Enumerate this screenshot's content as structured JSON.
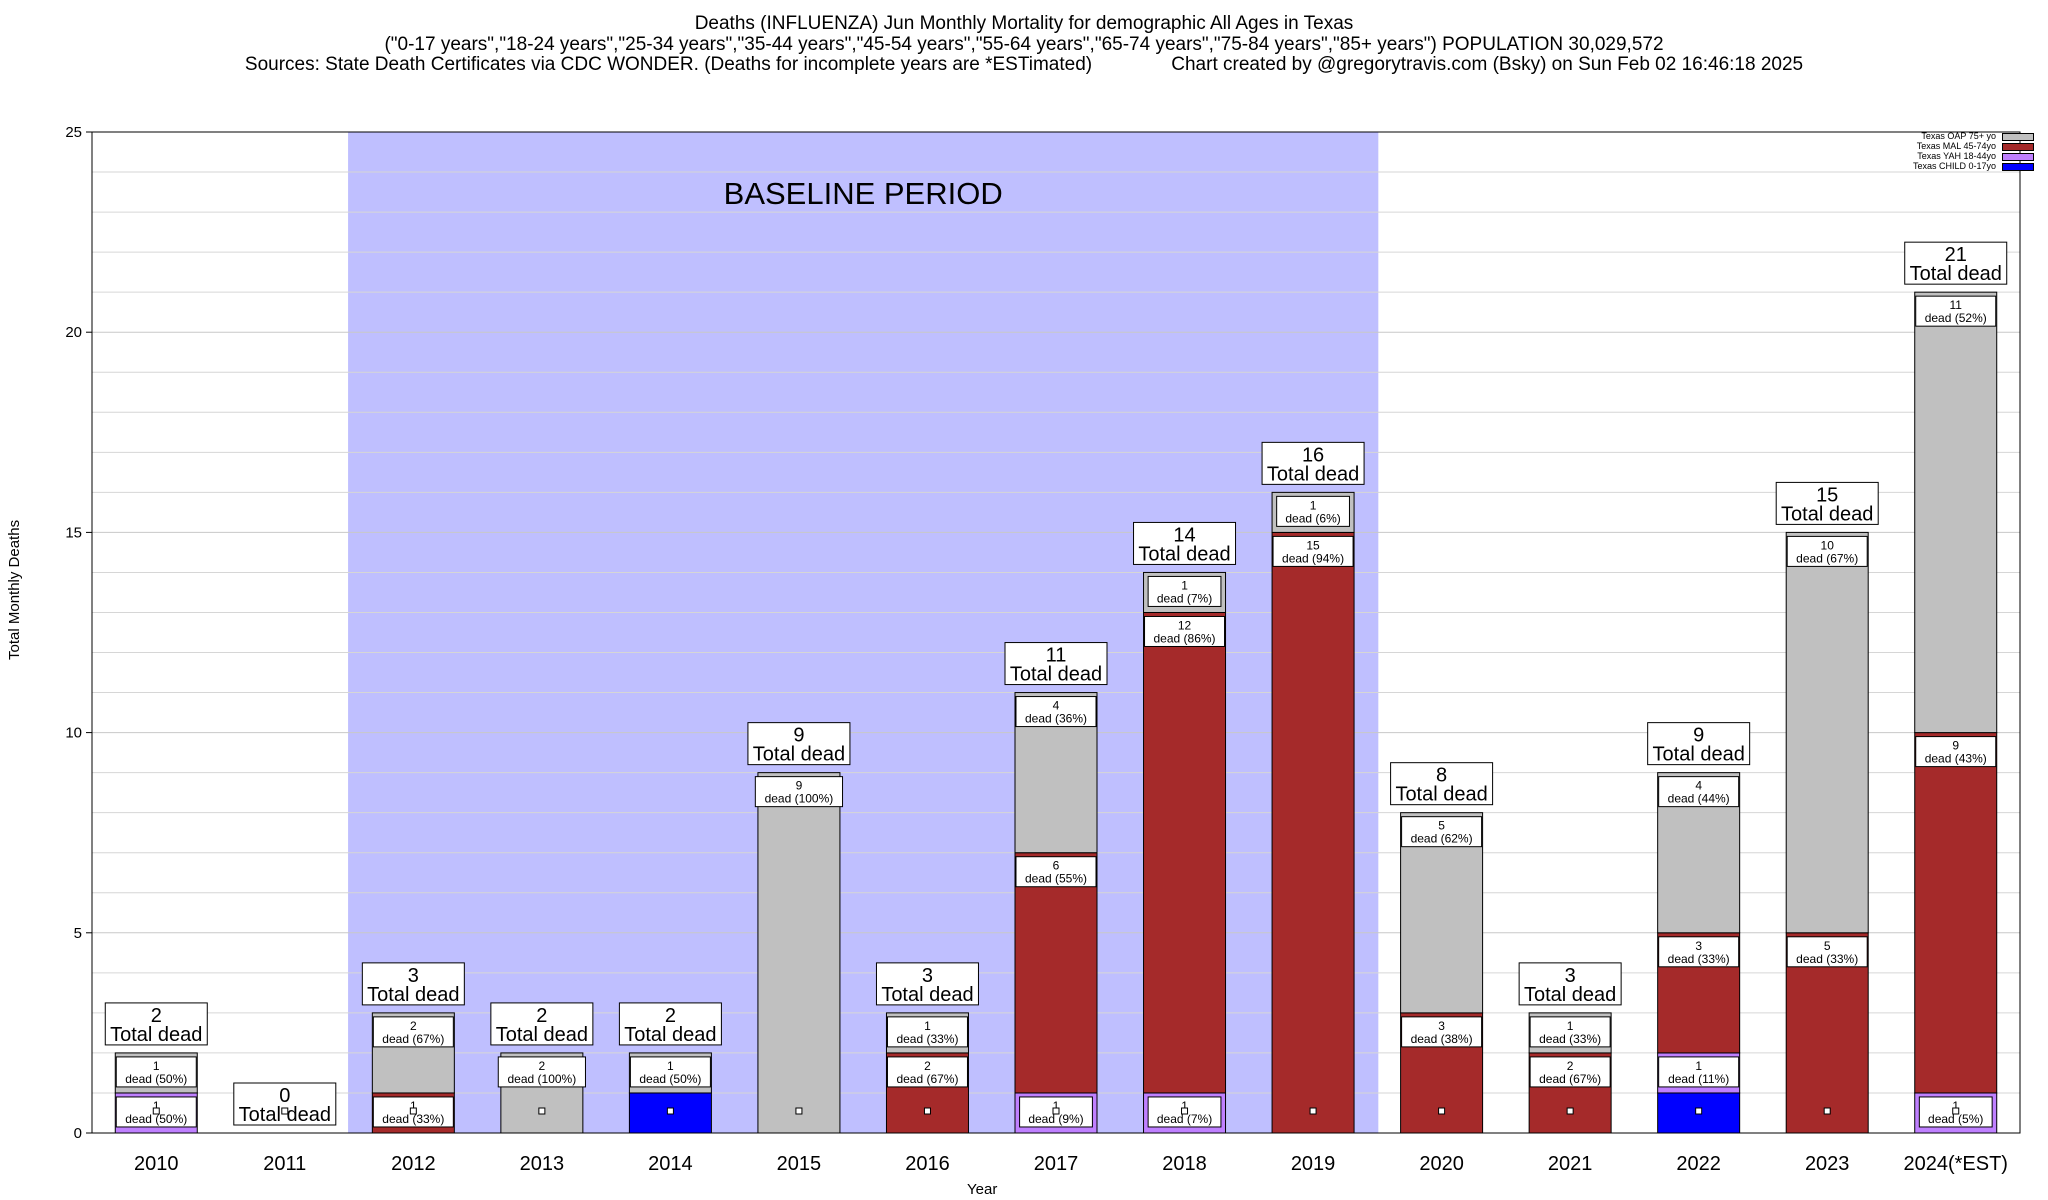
{
  "header": {
    "title_line1": "Deaths (INFLUENZA) Jun Monthly Mortality for demographic All Ages in Texas",
    "title_line2": "(\"0-17 years\",\"18-24 years\",\"25-34 years\",\"35-44 years\",\"45-54 years\",\"55-64 years\",\"65-74 years\",\"75-84 years\",\"85+ years\") POPULATION 30,029,572",
    "title_line3": "Sources: State Death Certificates via CDC WONDER. (Deaths for incomplete years are *ESTimated)               Chart created by @gregorytravis.com (Bsky) on Sun Feb 02 16:46:18 2025"
  },
  "chart_data": {
    "type": "bar",
    "stacked": true,
    "categories": [
      "2010",
      "2011",
      "2012",
      "2013",
      "2014",
      "2015",
      "2016",
      "2017",
      "2018",
      "2019",
      "2020",
      "2021",
      "2022",
      "2023",
      "2024(*EST)"
    ],
    "series": [
      {
        "name": "Texas CHILD 0-17yo",
        "color": "#0000ff",
        "values": [
          0,
          0,
          0,
          0,
          1,
          0,
          0,
          0,
          0,
          0,
          0,
          0,
          1,
          0,
          0
        ]
      },
      {
        "name": "Texas YAH 18-44yo",
        "color": "#bf80ff",
        "values": [
          1,
          0,
          0,
          0,
          0,
          0,
          0,
          1,
          1,
          0,
          0,
          0,
          1,
          0,
          1
        ]
      },
      {
        "name": "Texas MAL 45-74yo",
        "color": "#a52a2a",
        "values": [
          0,
          0,
          1,
          0,
          0,
          0,
          2,
          6,
          12,
          15,
          3,
          2,
          3,
          5,
          9
        ]
      },
      {
        "name": "Texas OAP 75+ yo",
        "color": "#c0c0c0",
        "values": [
          1,
          0,
          2,
          2,
          1,
          9,
          1,
          4,
          1,
          1,
          5,
          1,
          4,
          10,
          11
        ]
      }
    ],
    "segment_labels": [
      [
        {
          "series": 1,
          "text": "1\ndead (50%)"
        },
        {
          "series": 3,
          "text": "1\ndead (50%)"
        }
      ],
      [],
      [
        {
          "series": 2,
          "text": "1\ndead (33%)"
        },
        {
          "series": 3,
          "text": "2\ndead (67%)"
        }
      ],
      [
        {
          "series": 3,
          "text": "2\ndead (100%)"
        }
      ],
      [
        {
          "series": 3,
          "text": "1\ndead (50%)"
        }
      ],
      [
        {
          "series": 3,
          "text": "9\ndead (100%)"
        }
      ],
      [
        {
          "series": 2,
          "text": "2\ndead (67%)"
        },
        {
          "series": 3,
          "text": "1\ndead (33%)"
        }
      ],
      [
        {
          "series": 1,
          "text": "1\ndead (9%)"
        },
        {
          "series": 2,
          "text": "6\ndead (55%)"
        },
        {
          "series": 3,
          "text": "4\ndead (36%)"
        }
      ],
      [
        {
          "series": 1,
          "text": "1\ndead (7%)"
        },
        {
          "series": 2,
          "text": "12\ndead (86%)"
        },
        {
          "series": 3,
          "text": "1\ndead (7%)"
        }
      ],
      [
        {
          "series": 2,
          "text": "15\ndead (94%)"
        },
        {
          "series": 3,
          "text": "1\ndead (6%)"
        }
      ],
      [
        {
          "series": 2,
          "text": "3\ndead (38%)"
        },
        {
          "series": 3,
          "text": "5\ndead (62%)"
        }
      ],
      [
        {
          "series": 2,
          "text": "2\ndead (67%)"
        },
        {
          "series": 3,
          "text": "1\ndead (33%)"
        }
      ],
      [
        {
          "series": 1,
          "text": "1\ndead (11%)"
        },
        {
          "series": 2,
          "text": "3\ndead (33%)"
        },
        {
          "series": 3,
          "text": "4\ndead (44%)"
        }
      ],
      [
        {
          "series": 2,
          "text": "5\ndead (33%)"
        },
        {
          "series": 3,
          "text": "10\ndead (67%)"
        }
      ],
      [
        {
          "series": 1,
          "text": "1\ndead (5%)"
        },
        {
          "series": 2,
          "text": "9\ndead (43%)"
        },
        {
          "series": 3,
          "text": "11\ndead (52%)"
        }
      ]
    ],
    "totals": [
      2,
      0,
      3,
      2,
      2,
      9,
      3,
      11,
      14,
      16,
      8,
      3,
      9,
      15,
      21
    ],
    "total_suffix": "Total dead",
    "baseline": {
      "label": "BASELINE PERIOD",
      "from": "2012",
      "to": "2019",
      "color": "#bfbfff"
    },
    "ylim": [
      0,
      25
    ],
    "yticks": [
      0,
      5,
      10,
      15,
      20,
      25
    ],
    "minor_step": 1,
    "ylabel": "Total Monthly Deaths",
    "xlabel": "Year",
    "grid": true,
    "legend_placement": "top-right",
    "legend_order": [
      3,
      2,
      1,
      0
    ]
  }
}
